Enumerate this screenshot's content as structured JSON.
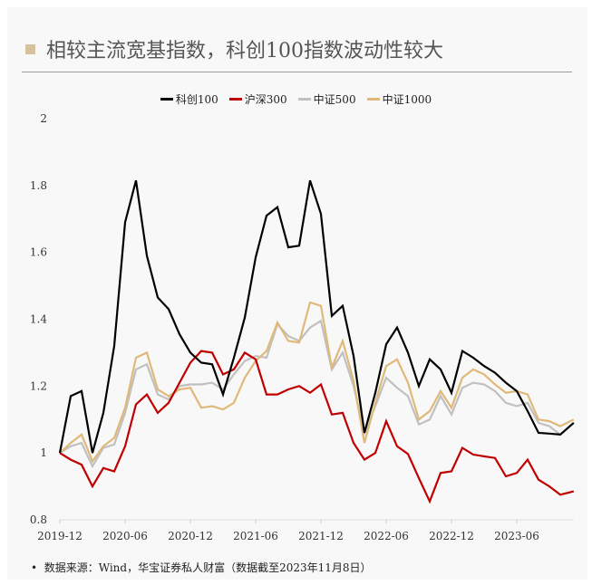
{
  "title": "相较主流宽基指数，科创100指数波动性较大",
  "footnote": "数据来源：Wind，华宝证券私人财富（数据截至2023年11月8日）",
  "chart_data": {
    "type": "line",
    "title": "相较主流宽基指数，科创100指数波动性较大",
    "xlabel": "",
    "ylabel": "",
    "ylim": [
      0.8,
      2
    ],
    "yticks": [
      "0.8",
      "1",
      "1.2",
      "1.4",
      "1.6",
      "1.8",
      "2"
    ],
    "xticks": [
      "2019-12",
      "2020-06",
      "2020-12",
      "2021-06",
      "2021-12",
      "2022-06",
      "2022-12",
      "2023-06"
    ],
    "grid": false,
    "legend": "top",
    "x": [
      "2019-12",
      "2020-01",
      "2020-02",
      "2020-03",
      "2020-04",
      "2020-05",
      "2020-06",
      "2020-07",
      "2020-08",
      "2020-09",
      "2020-10",
      "2020-11",
      "2020-12",
      "2021-01",
      "2021-02",
      "2021-03",
      "2021-04",
      "2021-05",
      "2021-06",
      "2021-07",
      "2021-08",
      "2021-09",
      "2021-10",
      "2021-11",
      "2021-12",
      "2022-01",
      "2022-02",
      "2022-03",
      "2022-04",
      "2022-05",
      "2022-06",
      "2022-07",
      "2022-08",
      "2022-09",
      "2022-10",
      "2022-11",
      "2022-12",
      "2023-01",
      "2023-02",
      "2023-03",
      "2023-04",
      "2023-05",
      "2023-06",
      "2023-07",
      "2023-08",
      "2023-09",
      "2023-10",
      "2023-11-08"
    ],
    "series": [
      {
        "name": "科创100",
        "color": "#000000",
        "values": [
          1.0,
          1.17,
          1.185,
          1.0,
          1.12,
          1.32,
          1.69,
          1.815,
          1.59,
          1.465,
          1.43,
          1.355,
          1.3,
          1.27,
          1.265,
          1.175,
          1.285,
          1.405,
          1.585,
          1.71,
          1.735,
          1.615,
          1.62,
          1.815,
          1.715,
          1.41,
          1.44,
          1.29,
          1.06,
          1.18,
          1.325,
          1.375,
          1.3,
          1.2,
          1.28,
          1.25,
          1.18,
          1.305,
          1.285,
          1.26,
          1.24,
          1.21,
          1.185,
          1.125,
          1.06,
          1.058,
          1.055,
          1.09
        ]
      },
      {
        "name": "沪深300",
        "color": "#c00000",
        "values": [
          1.0,
          0.98,
          0.965,
          0.9,
          0.955,
          0.945,
          1.02,
          1.145,
          1.175,
          1.12,
          1.15,
          1.21,
          1.27,
          1.305,
          1.3,
          1.235,
          1.25,
          1.3,
          1.28,
          1.175,
          1.175,
          1.19,
          1.2,
          1.18,
          1.205,
          1.115,
          1.12,
          1.03,
          0.98,
          1.0,
          1.095,
          1.02,
          0.997,
          0.925,
          0.855,
          0.94,
          0.945,
          1.015,
          0.995,
          0.99,
          0.985,
          0.93,
          0.94,
          0.98,
          0.92,
          0.9,
          0.875,
          0.885
        ]
      },
      {
        "name": "中证500",
        "color": "#c0c0c0",
        "values": [
          1.0,
          1.02,
          1.03,
          0.96,
          1.015,
          1.025,
          1.12,
          1.25,
          1.265,
          1.175,
          1.16,
          1.2,
          1.205,
          1.205,
          1.21,
          1.19,
          1.235,
          1.275,
          1.29,
          1.285,
          1.385,
          1.35,
          1.335,
          1.375,
          1.395,
          1.25,
          1.3,
          1.2,
          1.06,
          1.14,
          1.225,
          1.195,
          1.17,
          1.085,
          1.1,
          1.17,
          1.115,
          1.195,
          1.21,
          1.205,
          1.185,
          1.15,
          1.14,
          1.15,
          1.09,
          1.08,
          1.055,
          1.09
        ]
      },
      {
        "name": "中证1000",
        "color": "#e0b97a",
        "values": [
          1.0,
          1.03,
          1.055,
          0.975,
          1.02,
          1.045,
          1.135,
          1.285,
          1.3,
          1.19,
          1.17,
          1.19,
          1.195,
          1.135,
          1.14,
          1.13,
          1.15,
          1.225,
          1.275,
          1.305,
          1.39,
          1.335,
          1.33,
          1.45,
          1.44,
          1.255,
          1.335,
          1.215,
          1.03,
          1.15,
          1.26,
          1.28,
          1.21,
          1.1,
          1.125,
          1.185,
          1.135,
          1.225,
          1.25,
          1.235,
          1.205,
          1.18,
          1.185,
          1.175,
          1.1,
          1.095,
          1.08,
          1.1
        ]
      }
    ]
  }
}
